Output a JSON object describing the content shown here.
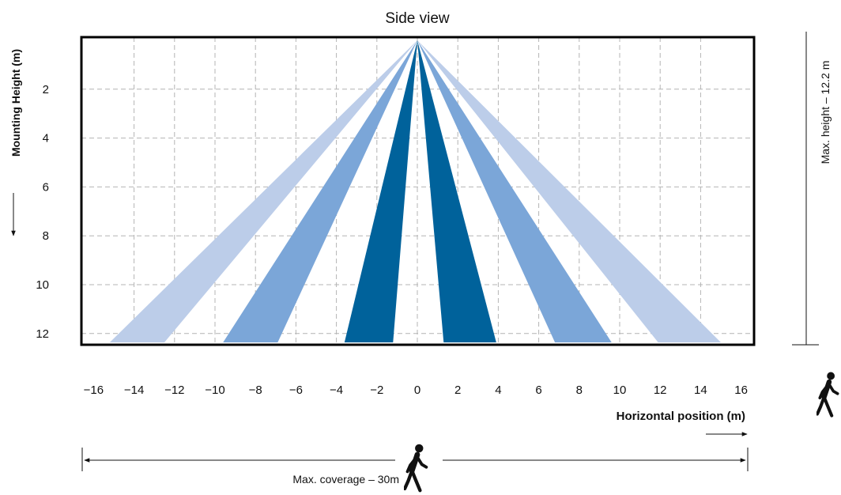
{
  "chart_data": {
    "type": "diagram",
    "title": "Side view",
    "xlabel": "Horizontal position (m)",
    "ylabel": "Mounting Height (m)",
    "xlim": [
      -16,
      16
    ],
    "ylim": [
      0,
      12.2
    ],
    "x_ticks": [
      "−16",
      "−14",
      "−12",
      "−10",
      "−8",
      "−6",
      "−4",
      "−2",
      "0",
      "2",
      "4",
      "6",
      "8",
      "10",
      "12",
      "14",
      "16"
    ],
    "y_ticks": [
      "2",
      "4",
      "6",
      "8",
      "10",
      "12"
    ],
    "grid": true,
    "apex": [
      0,
      0
    ],
    "beams": [
      {
        "name": "outer-left",
        "color": "#bccde9",
        "bottom_x": [
          -15.2,
          -12.5
        ]
      },
      {
        "name": "middle-left",
        "color": "#7ba6d8",
        "bottom_x": [
          -9.6,
          -6.9
        ]
      },
      {
        "name": "inner-left",
        "color": "#00629b",
        "bottom_x": [
          -3.6,
          -1.2
        ]
      },
      {
        "name": "inner-right",
        "color": "#00629b",
        "bottom_x": [
          1.3,
          3.9
        ]
      },
      {
        "name": "middle-right",
        "color": "#7ba6d8",
        "bottom_x": [
          6.8,
          9.6
        ]
      },
      {
        "name": "outer-right",
        "color": "#bccde9",
        "bottom_x": [
          11.9,
          15.0
        ]
      }
    ]
  },
  "annotations": {
    "max_height": "Max. height – 12.2 m",
    "max_coverage": "Max. coverage – 30m"
  },
  "icons": {
    "person_right": "person-walking-icon",
    "person_bottom": "person-walking-icon"
  }
}
